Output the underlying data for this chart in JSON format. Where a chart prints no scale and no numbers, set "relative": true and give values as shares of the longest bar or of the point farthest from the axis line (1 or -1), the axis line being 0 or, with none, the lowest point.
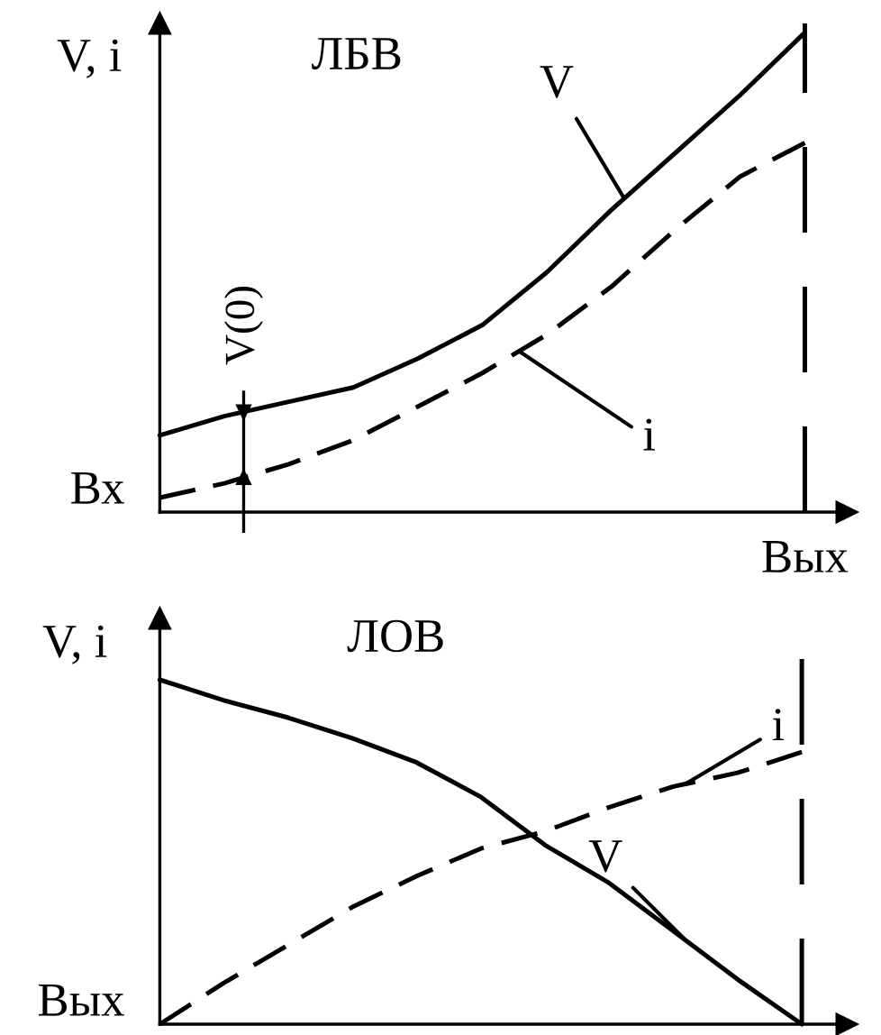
{
  "chart_data": [
    {
      "type": "line",
      "title": "ЛБВ",
      "ylabel": "V, i",
      "xlabel": "Вых",
      "relative": true,
      "categories": [
        null,
        null,
        null,
        null,
        null,
        null,
        null,
        null,
        null,
        null,
        null
      ],
      "series": [
        {
          "name": "V",
          "color": "#000000",
          "line_style": "solid",
          "values": [
            0.16,
            0.2,
            0.23,
            0.26,
            0.32,
            0.39,
            0.5,
            0.63,
            0.75,
            0.87,
            1.0
          ]
        },
        {
          "name": "i",
          "color": "#000000",
          "line_style": "dashed",
          "values": [
            0.03,
            0.06,
            0.1,
            0.15,
            0.22,
            0.29,
            0.37,
            0.47,
            0.59,
            0.7,
            0.77
          ]
        }
      ],
      "annotations": [
        "Вх",
        "V(0)"
      ]
    },
    {
      "type": "line",
      "title": "ЛОВ",
      "ylabel": "V, i",
      "relative": true,
      "categories": [
        null,
        null,
        null,
        null,
        null,
        null,
        null,
        null,
        null,
        null,
        null
      ],
      "series": [
        {
          "name": "V",
          "color": "#000000",
          "line_style": "solid",
          "values": [
            1.0,
            0.94,
            0.89,
            0.83,
            0.76,
            0.66,
            0.52,
            0.41,
            0.27,
            0.13,
            0.0
          ]
        },
        {
          "name": "i",
          "color": "#000000",
          "line_style": "dashed",
          "values": [
            0.0,
            0.12,
            0.23,
            0.34,
            0.43,
            0.51,
            0.56,
            0.63,
            0.69,
            0.73,
            0.79
          ]
        }
      ],
      "annotations": [
        "Вых"
      ]
    }
  ]
}
